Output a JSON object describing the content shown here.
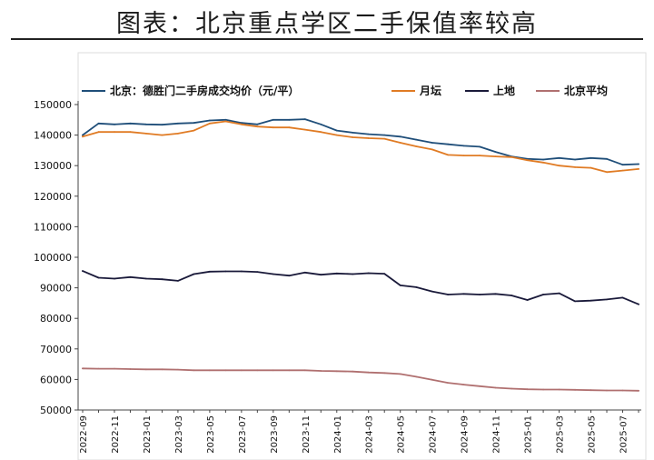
{
  "header": {
    "title": "图表：北京重点学区二手保值率较高"
  },
  "chart_data": {
    "type": "line",
    "title": "图表：北京重点学区二手保值率较高",
    "xlabel": "",
    "ylabel": "",
    "ylim": [
      50000,
      150000
    ],
    "yticks": [
      50000,
      60000,
      70000,
      80000,
      90000,
      100000,
      110000,
      120000,
      130000,
      140000,
      150000
    ],
    "x_tick_labels": [
      "2022-09",
      "2022-11",
      "2023-01",
      "2023-03",
      "2023-05",
      "2023-07",
      "2023-09",
      "2023-11",
      "2024-01",
      "2024-03",
      "2024-05",
      "2024-07",
      "2024-09",
      "2024-11",
      "2025-01",
      "2025-03",
      "2025-05",
      "2025-07"
    ],
    "x": [
      "2022-09",
      "2022-10",
      "2022-11",
      "2022-12",
      "2023-01",
      "2023-02",
      "2023-03",
      "2023-04",
      "2023-05",
      "2023-06",
      "2023-07",
      "2023-08",
      "2023-09",
      "2023-10",
      "2023-11",
      "2023-12",
      "2024-01",
      "2024-02",
      "2024-03",
      "2024-04",
      "2024-05",
      "2024-06",
      "2024-07",
      "2024-08",
      "2024-09",
      "2024-10",
      "2024-11",
      "2024-12",
      "2025-01",
      "2025-02",
      "2025-03",
      "2025-04",
      "2025-05",
      "2025-06",
      "2025-07",
      "2025-08"
    ],
    "grid": false,
    "legend_position": "top",
    "series": [
      {
        "name": "北京：德胜门二手房成交均价（元/平）",
        "color": "#1f4e79",
        "values": [
          140000,
          143800,
          143500,
          143800,
          143500,
          143400,
          143800,
          144000,
          144800,
          145000,
          144000,
          143500,
          145000,
          145000,
          145200,
          143500,
          141500,
          140800,
          140300,
          140000,
          139500,
          138500,
          137500,
          137000,
          136500,
          136200,
          134500,
          133000,
          132200,
          132000,
          132500,
          132000,
          132500,
          132200,
          130300,
          130500
        ]
      },
      {
        "name": "月坛",
        "color": "#e07b24",
        "values": [
          139500,
          141000,
          141000,
          141000,
          140500,
          140000,
          140500,
          141500,
          143800,
          144500,
          143500,
          142800,
          142500,
          142500,
          141800,
          141000,
          140000,
          139300,
          139000,
          138800,
          137500,
          136300,
          135300,
          133500,
          133300,
          133300,
          133000,
          132800,
          131800,
          131000,
          130000,
          129500,
          129300,
          127900,
          128400,
          128900
        ]
      },
      {
        "name": "上地",
        "color": "#1a1a3a",
        "values": [
          95500,
          93300,
          93000,
          93500,
          93000,
          92800,
          92300,
          94500,
          95300,
          95400,
          95400,
          95200,
          94500,
          94000,
          95000,
          94300,
          94700,
          94500,
          94800,
          94600,
          90800,
          90200,
          88800,
          87800,
          88000,
          87800,
          88000,
          87500,
          86000,
          87800,
          88200,
          85600,
          85800,
          86200,
          86800,
          84600
        ]
      },
      {
        "name": "北京平均",
        "color": "#b07070",
        "values": [
          63600,
          63500,
          63500,
          63400,
          63300,
          63300,
          63200,
          63000,
          63000,
          63000,
          63000,
          63000,
          63000,
          63000,
          63000,
          62800,
          62700,
          62600,
          62300,
          62100,
          61800,
          60900,
          59900,
          58900,
          58300,
          57800,
          57300,
          57000,
          56800,
          56700,
          56700,
          56600,
          56500,
          56400,
          56400,
          56300
        ]
      }
    ]
  }
}
